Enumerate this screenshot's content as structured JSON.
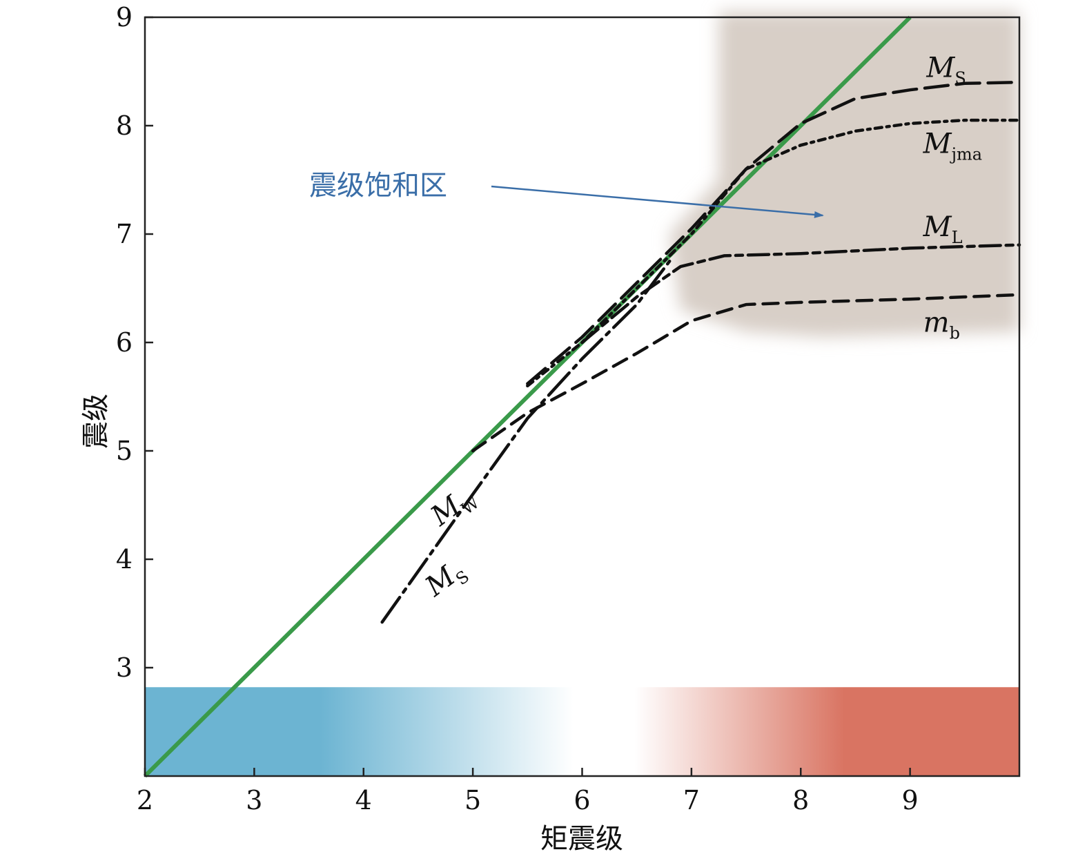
{
  "chart_data": {
    "type": "line",
    "xlabel": "矩震级",
    "ylabel": "震级",
    "xlim": [
      2,
      10
    ],
    "ylim": [
      2,
      9
    ],
    "xticks": [
      2,
      3,
      4,
      5,
      6,
      7,
      8,
      9
    ],
    "yticks": [
      3,
      4,
      5,
      6,
      7,
      8,
      9
    ],
    "grid": false,
    "annotation": "震级饱和区",
    "series": [
      {
        "label_main": "M",
        "label_sub": "W",
        "color": "#3a9a4a",
        "style": "solid",
        "x": [
          2.0,
          9.0
        ],
        "y": [
          2.0,
          9.0
        ]
      },
      {
        "label_main": "M",
        "label_sub": "S",
        "color": "#111111",
        "style": "dashdot",
        "x": [
          4.17,
          5.0,
          5.5,
          6.0,
          6.5,
          6.8
        ],
        "y": [
          3.42,
          4.6,
          5.3,
          5.85,
          6.35,
          6.75
        ]
      },
      {
        "label_main": "M",
        "label_sub": "S",
        "color": "#111111",
        "style": "longdash",
        "x": [
          5.5,
          6.0,
          6.5,
          7.0,
          7.5,
          8.0,
          8.5,
          9.0,
          9.5,
          10.0
        ],
        "y": [
          5.62,
          6.05,
          6.55,
          7.05,
          7.6,
          8.02,
          8.25,
          8.33,
          8.39,
          8.4
        ]
      },
      {
        "label_main": "M",
        "label_sub": "jma",
        "color": "#111111",
        "style": "dotdash",
        "x": [
          5.5,
          6.0,
          6.5,
          7.0,
          7.5,
          8.0,
          8.5,
          9.0,
          9.5,
          10.0
        ],
        "y": [
          5.6,
          6.0,
          6.5,
          7.0,
          7.6,
          7.82,
          7.95,
          8.02,
          8.05,
          8.05
        ]
      },
      {
        "label_main": "M",
        "label_sub": "L",
        "color": "#111111",
        "style": "longshortdash",
        "x": [
          6.0,
          6.5,
          6.9,
          7.3,
          8.0,
          9.0,
          10.0
        ],
        "y": [
          6.0,
          6.42,
          6.7,
          6.8,
          6.82,
          6.87,
          6.9
        ]
      },
      {
        "label_main": "m",
        "label_sub": "b",
        "color": "#111111",
        "style": "dash",
        "x": [
          5.0,
          5.5,
          6.0,
          6.5,
          7.0,
          7.5,
          8.0,
          9.0,
          10.0
        ],
        "y": [
          5.0,
          5.35,
          5.62,
          5.9,
          6.2,
          6.35,
          6.37,
          6.4,
          6.44
        ]
      }
    ],
    "colorbar": {
      "range": [
        2,
        10
      ],
      "low_color": "#6cb4d2",
      "mid_color": "#ffffff",
      "high_color": "#d97462"
    },
    "saturation_fill": "#d8cfc7",
    "arrow_color": "#3a6ea8"
  }
}
